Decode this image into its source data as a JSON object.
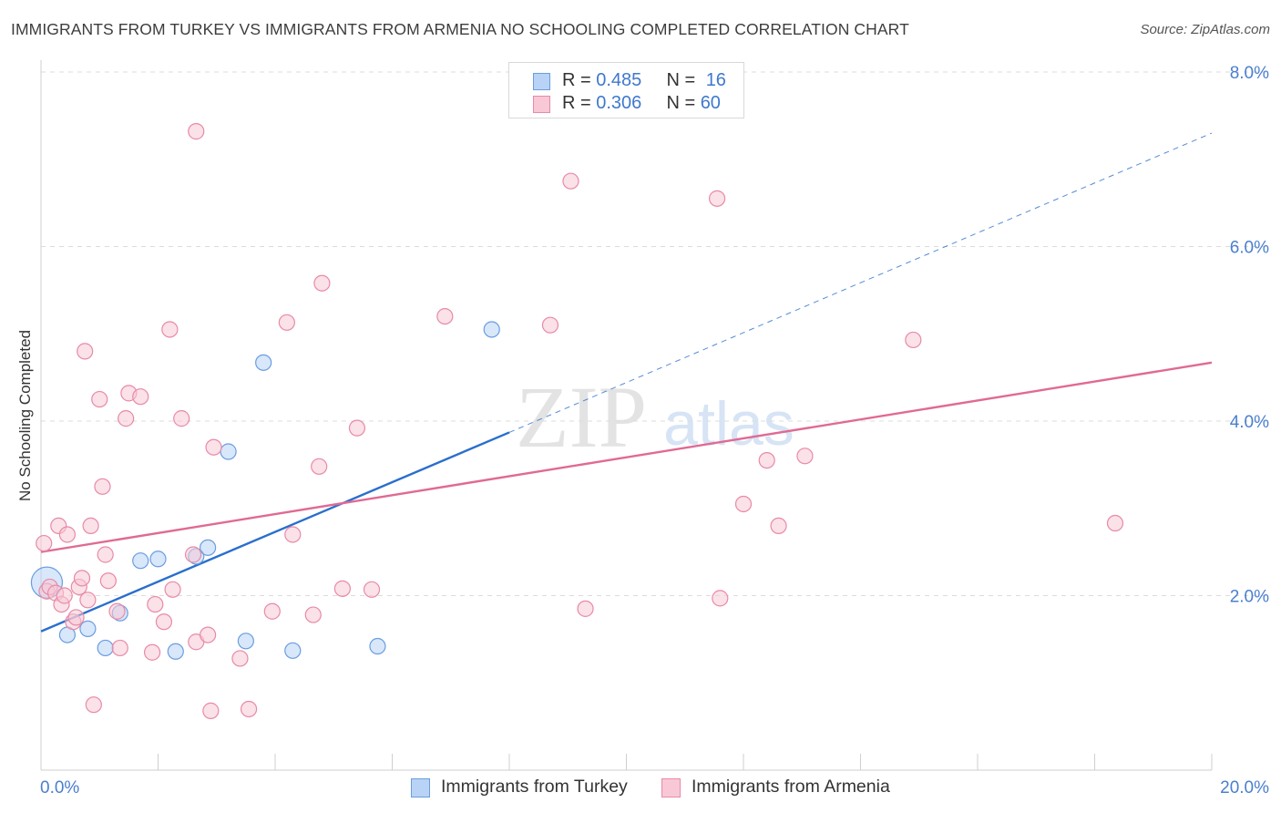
{
  "title": "IMMIGRANTS FROM TURKEY VS IMMIGRANTS FROM ARMENIA NO SCHOOLING COMPLETED CORRELATION CHART",
  "source": "Source: ZipAtlas.com",
  "watermark": {
    "zip": "ZIP",
    "atlas": "atlas"
  },
  "legend": {
    "rows": [
      {
        "r_label": "R = ",
        "r_value": "0.485",
        "n_label": "N = ",
        "n_value": "16",
        "fill": "#b8d3f5",
        "stroke": "#6a9de0"
      },
      {
        "r_label": "R = ",
        "r_value": "0.306",
        "n_label": "N = ",
        "n_value": "60",
        "fill": "#f8c8d6",
        "stroke": "#e88aa6"
      }
    ]
  },
  "bottom_legend": {
    "items": [
      {
        "label": "Immigrants from Turkey",
        "fill": "#b8d3f5",
        "stroke": "#6a9de0"
      },
      {
        "label": "Immigrants from Armenia",
        "fill": "#f8c8d6",
        "stroke": "#e88aa6"
      }
    ]
  },
  "chart_data": {
    "type": "scatter",
    "title": "IMMIGRANTS FROM TURKEY VS IMMIGRANTS FROM ARMENIA NO SCHOOLING COMPLETED CORRELATION CHART",
    "xlabel": "",
    "ylabel": "No Schooling Completed",
    "xlim": [
      0,
      20
    ],
    "ylim": [
      0,
      8
    ],
    "x_tick_labels": [
      {
        "value": 0,
        "label": "0.0%"
      },
      {
        "value": 20,
        "label": "20.0%"
      }
    ],
    "y_tick_labels": [
      {
        "value": 2,
        "label": "2.0%"
      },
      {
        "value": 4,
        "label": "4.0%"
      },
      {
        "value": 6,
        "label": "6.0%"
      },
      {
        "value": 8,
        "label": "8.0%"
      }
    ],
    "series": [
      {
        "name": "Immigrants from Turkey",
        "color": "#6a9de0",
        "fill": "#b8d3f5",
        "line_color": "#2a6fcc",
        "trend": {
          "x0": 0,
          "y0": 1.59,
          "x1": 8.0,
          "y1": 3.87,
          "dashed_to_x": 20,
          "dashed_to_y": 7.3
        },
        "points": [
          {
            "x": 0.1,
            "y": 2.15,
            "big": true
          },
          {
            "x": 0.45,
            "y": 1.55
          },
          {
            "x": 0.8,
            "y": 1.62
          },
          {
            "x": 1.1,
            "y": 1.4
          },
          {
            "x": 1.35,
            "y": 1.8
          },
          {
            "x": 1.7,
            "y": 2.4
          },
          {
            "x": 2.0,
            "y": 2.42
          },
          {
            "x": 2.3,
            "y": 1.36
          },
          {
            "x": 2.65,
            "y": 2.45
          },
          {
            "x": 2.85,
            "y": 2.55
          },
          {
            "x": 3.2,
            "y": 3.65
          },
          {
            "x": 3.5,
            "y": 1.48
          },
          {
            "x": 3.8,
            "y": 4.67
          },
          {
            "x": 4.3,
            "y": 1.37
          },
          {
            "x": 5.75,
            "y": 1.42
          },
          {
            "x": 7.7,
            "y": 5.05
          }
        ]
      },
      {
        "name": "Immigrants from Armenia",
        "color": "#e88aa6",
        "fill": "#f8c8d6",
        "line_color": "#e06a93",
        "trend": {
          "x0": 0,
          "y0": 2.5,
          "x1": 20,
          "y1": 4.67
        },
        "points": [
          {
            "x": 0.05,
            "y": 2.6
          },
          {
            "x": 0.1,
            "y": 2.05
          },
          {
            "x": 0.15,
            "y": 2.1
          },
          {
            "x": 0.25,
            "y": 2.03
          },
          {
            "x": 0.3,
            "y": 2.8
          },
          {
            "x": 0.35,
            "y": 1.9
          },
          {
            "x": 0.4,
            "y": 2.0
          },
          {
            "x": 0.45,
            "y": 2.7
          },
          {
            "x": 0.55,
            "y": 1.7
          },
          {
            "x": 0.6,
            "y": 1.75
          },
          {
            "x": 0.65,
            "y": 2.1
          },
          {
            "x": 0.7,
            "y": 2.2
          },
          {
            "x": 0.75,
            "y": 4.8
          },
          {
            "x": 0.8,
            "y": 1.95
          },
          {
            "x": 0.85,
            "y": 2.8
          },
          {
            "x": 0.9,
            "y": 0.75
          },
          {
            "x": 1.0,
            "y": 4.25
          },
          {
            "x": 1.05,
            "y": 3.25
          },
          {
            "x": 1.1,
            "y": 2.47
          },
          {
            "x": 1.15,
            "y": 2.17
          },
          {
            "x": 1.3,
            "y": 1.82
          },
          {
            "x": 1.35,
            "y": 1.4
          },
          {
            "x": 1.45,
            "y": 4.03
          },
          {
            "x": 1.5,
            "y": 4.32
          },
          {
            "x": 1.7,
            "y": 4.28
          },
          {
            "x": 1.9,
            "y": 1.35
          },
          {
            "x": 1.95,
            "y": 1.9
          },
          {
            "x": 2.1,
            "y": 1.7
          },
          {
            "x": 2.2,
            "y": 5.05
          },
          {
            "x": 2.25,
            "y": 2.07
          },
          {
            "x": 2.4,
            "y": 4.03
          },
          {
            "x": 2.6,
            "y": 2.47
          },
          {
            "x": 2.65,
            "y": 7.32
          },
          {
            "x": 2.65,
            "y": 1.47
          },
          {
            "x": 2.85,
            "y": 1.55
          },
          {
            "x": 2.9,
            "y": 0.68
          },
          {
            "x": 2.95,
            "y": 3.7
          },
          {
            "x": 3.4,
            "y": 1.28
          },
          {
            "x": 3.55,
            "y": 0.7
          },
          {
            "x": 3.95,
            "y": 1.82
          },
          {
            "x": 4.2,
            "y": 5.13
          },
          {
            "x": 4.3,
            "y": 2.7
          },
          {
            "x": 4.65,
            "y": 1.78
          },
          {
            "x": 4.75,
            "y": 3.48
          },
          {
            "x": 4.8,
            "y": 5.58
          },
          {
            "x": 5.15,
            "y": 2.08
          },
          {
            "x": 5.4,
            "y": 3.92
          },
          {
            "x": 5.65,
            "y": 2.07
          },
          {
            "x": 6.9,
            "y": 5.2
          },
          {
            "x": 8.7,
            "y": 5.1
          },
          {
            "x": 9.05,
            "y": 6.75
          },
          {
            "x": 9.3,
            "y": 1.85
          },
          {
            "x": 11.55,
            "y": 6.55
          },
          {
            "x": 11.6,
            "y": 1.97
          },
          {
            "x": 12.0,
            "y": 3.05
          },
          {
            "x": 12.4,
            "y": 3.55
          },
          {
            "x": 12.6,
            "y": 2.8
          },
          {
            "x": 13.05,
            "y": 3.6
          },
          {
            "x": 14.9,
            "y": 4.93
          },
          {
            "x": 18.35,
            "y": 2.83
          }
        ]
      }
    ]
  }
}
